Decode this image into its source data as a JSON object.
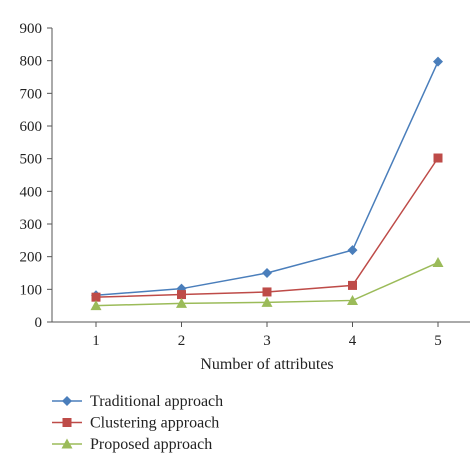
{
  "chart_data": {
    "type": "line",
    "xlabel": "Number of attributes",
    "ylabel": "",
    "x": [
      1,
      2,
      3,
      4,
      5
    ],
    "ylim": [
      0,
      900
    ],
    "yticks": [
      0,
      100,
      200,
      300,
      400,
      500,
      600,
      700,
      800,
      900
    ],
    "grid": false,
    "legend_position": "bottom-left",
    "series": [
      {
        "name": "Traditional approach",
        "values": [
          82,
          102,
          150,
          220,
          797
        ],
        "color": "#4a7ebb",
        "marker": "diamond"
      },
      {
        "name": "Clustering approach",
        "values": [
          76,
          84,
          92,
          112,
          502
        ],
        "color": "#be4b48",
        "marker": "square"
      },
      {
        "name": "Proposed approach",
        "values": [
          50,
          57,
          60,
          66,
          182
        ],
        "color": "#9bbb59",
        "marker": "triangle"
      }
    ]
  }
}
